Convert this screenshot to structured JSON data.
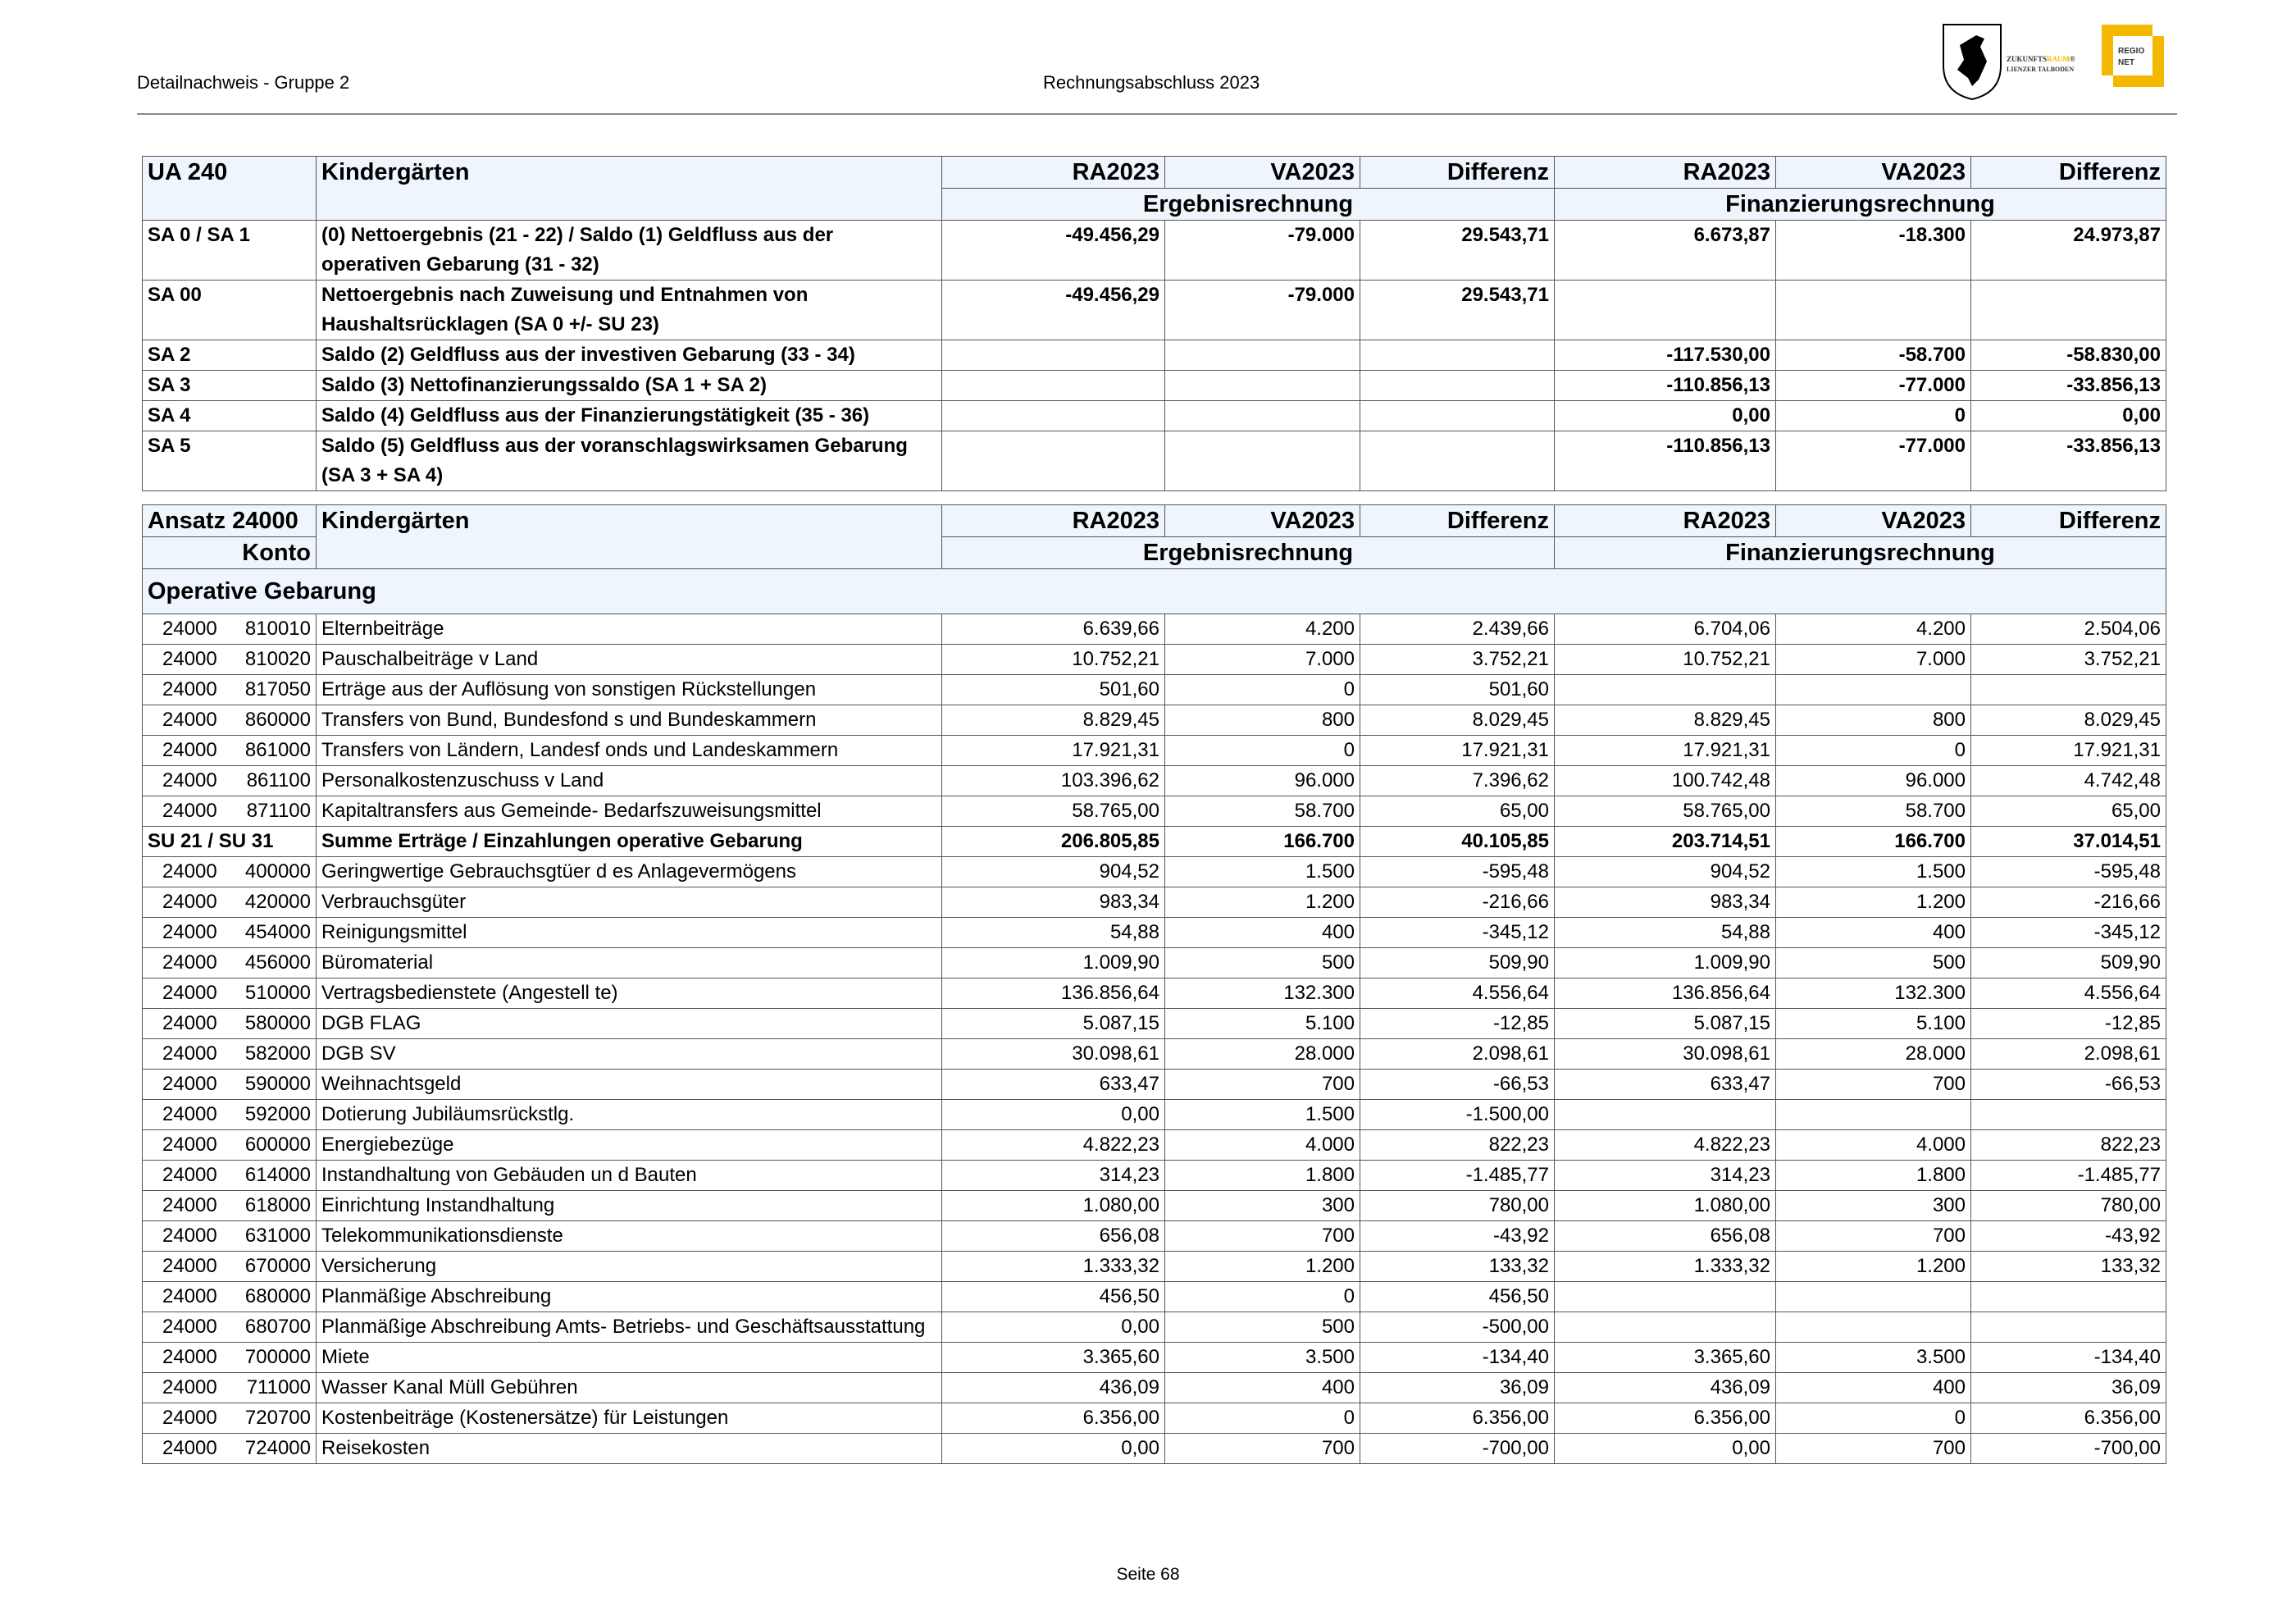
{
  "header": {
    "left": "Detailnachweis - Gruppe 2",
    "center": "Rechnungsabschluss 2023"
  },
  "logo": {
    "text1": "ZUKUNFTS",
    "text1b": "RAUM",
    "text2": "LIENZER TALBODEN",
    "regio1": "REGIO",
    "regio2": "NET",
    "accent": "#f5b800"
  },
  "footer": {
    "page": "Seite 68"
  },
  "table1": {
    "code": "UA 240",
    "title": "Kindergärten",
    "columns": [
      "RA2023",
      "VA2023",
      "Differenz",
      "RA2023",
      "VA2023",
      "Differenz"
    ],
    "groups": [
      "Ergebnisrechnung",
      "Finanzierungsrechnung"
    ],
    "rows": [
      {
        "code": "SA 0 / SA 1",
        "label": "(0) Nettoergebnis (21 - 22) / Saldo (1) Geldfluss aus der operativen Gebarung (31 - 32)",
        "values": [
          "-49.456,29",
          "-79.000",
          "29.543,71",
          "6.673,87",
          "-18.300",
          "24.973,87"
        ]
      },
      {
        "code": "SA 00",
        "label": "Nettoergebnis nach Zuweisung und Entnahmen von Haushaltsrücklagen (SA 0 +/- SU 23)",
        "values": [
          "-49.456,29",
          "-79.000",
          "29.543,71",
          "",
          "",
          ""
        ]
      },
      {
        "code": "SA 2",
        "label": "Saldo (2) Geldfluss aus der investiven Gebarung (33 - 34)",
        "values": [
          "",
          "",
          "",
          "-117.530,00",
          "-58.700",
          "-58.830,00"
        ]
      },
      {
        "code": "SA 3",
        "label": "Saldo (3) Nettofinanzierungssaldo (SA 1 + SA 2)",
        "values": [
          "",
          "",
          "",
          "-110.856,13",
          "-77.000",
          "-33.856,13"
        ]
      },
      {
        "code": "SA 4",
        "label": "Saldo (4) Geldfluss aus der Finanzierungstätigkeit (35 - 36)",
        "values": [
          "",
          "",
          "",
          "0,00",
          "0",
          "0,00"
        ]
      },
      {
        "code": "SA 5",
        "label": "Saldo (5) Geldfluss aus der voranschlagswirksamen Gebarung (SA 3 + SA 4)",
        "values": [
          "",
          "",
          "",
          "-110.856,13",
          "-77.000",
          "-33.856,13"
        ]
      }
    ]
  },
  "table2": {
    "code": "Ansatz 24000",
    "code2": "Konto",
    "title": "Kindergärten",
    "columns": [
      "RA2023",
      "VA2023",
      "Differenz",
      "RA2023",
      "VA2023",
      "Differenz"
    ],
    "groups": [
      "Ergebnisrechnung",
      "Finanzierungsrechnung"
    ],
    "section": "Operative Gebarung",
    "rows": [
      {
        "ansatz": "24000",
        "konto": "810010",
        "label": "Elternbeiträge",
        "values": [
          "6.639,66",
          "4.200",
          "2.439,66",
          "6.704,06",
          "4.200",
          "2.504,06"
        ]
      },
      {
        "ansatz": "24000",
        "konto": "810020",
        "label": "Pauschalbeiträge v Land",
        "values": [
          "10.752,21",
          "7.000",
          "3.752,21",
          "10.752,21",
          "7.000",
          "3.752,21"
        ]
      },
      {
        "ansatz": "24000",
        "konto": "817050",
        "label": "Erträge aus der Auflösung von sonstigen Rückstellungen",
        "values": [
          "501,60",
          "0",
          "501,60",
          "",
          "",
          ""
        ]
      },
      {
        "ansatz": "24000",
        "konto": "860000",
        "label": "Transfers von Bund, Bundesfond s und Bundeskammern",
        "values": [
          "8.829,45",
          "800",
          "8.029,45",
          "8.829,45",
          "800",
          "8.029,45"
        ]
      },
      {
        "ansatz": "24000",
        "konto": "861000",
        "label": "Transfers von Ländern, Landesf onds und Landeskammern",
        "values": [
          "17.921,31",
          "0",
          "17.921,31",
          "17.921,31",
          "0",
          "17.921,31"
        ]
      },
      {
        "ansatz": "24000",
        "konto": "861100",
        "label": "Personalkostenzuschuss v Land",
        "values": [
          "103.396,62",
          "96.000",
          "7.396,62",
          "100.742,48",
          "96.000",
          "4.742,48"
        ]
      },
      {
        "ansatz": "24000",
        "konto": "871100",
        "label": "Kapitaltransfers aus Gemeinde- Bedarfszuweisungsmittel",
        "values": [
          "58.765,00",
          "58.700",
          "65,00",
          "58.765,00",
          "58.700",
          "65,00"
        ]
      },
      {
        "sum": true,
        "code": "SU 21 / SU 31",
        "label": "Summe Erträge / Einzahlungen operative Gebarung",
        "values": [
          "206.805,85",
          "166.700",
          "40.105,85",
          "203.714,51",
          "166.700",
          "37.014,51"
        ]
      },
      {
        "ansatz": "24000",
        "konto": "400000",
        "label": "Geringwertige Gebrauchsgtüer d es Anlagevermögens",
        "values": [
          "904,52",
          "1.500",
          "-595,48",
          "904,52",
          "1.500",
          "-595,48"
        ]
      },
      {
        "ansatz": "24000",
        "konto": "420000",
        "label": "Verbrauchsgüter",
        "values": [
          "983,34",
          "1.200",
          "-216,66",
          "983,34",
          "1.200",
          "-216,66"
        ]
      },
      {
        "ansatz": "24000",
        "konto": "454000",
        "label": "Reinigungsmittel",
        "values": [
          "54,88",
          "400",
          "-345,12",
          "54,88",
          "400",
          "-345,12"
        ]
      },
      {
        "ansatz": "24000",
        "konto": "456000",
        "label": "Büromaterial",
        "values": [
          "1.009,90",
          "500",
          "509,90",
          "1.009,90",
          "500",
          "509,90"
        ]
      },
      {
        "ansatz": "24000",
        "konto": "510000",
        "label": "Vertragsbedienstete (Angestell te)",
        "values": [
          "136.856,64",
          "132.300",
          "4.556,64",
          "136.856,64",
          "132.300",
          "4.556,64"
        ]
      },
      {
        "ansatz": "24000",
        "konto": "580000",
        "label": "DGB FLAG",
        "values": [
          "5.087,15",
          "5.100",
          "-12,85",
          "5.087,15",
          "5.100",
          "-12,85"
        ]
      },
      {
        "ansatz": "24000",
        "konto": "582000",
        "label": "DGB SV",
        "values": [
          "30.098,61",
          "28.000",
          "2.098,61",
          "30.098,61",
          "28.000",
          "2.098,61"
        ]
      },
      {
        "ansatz": "24000",
        "konto": "590000",
        "label": "Weihnachtsgeld",
        "values": [
          "633,47",
          "700",
          "-66,53",
          "633,47",
          "700",
          "-66,53"
        ]
      },
      {
        "ansatz": "24000",
        "konto": "592000",
        "label": "Dotierung Jubiläumsrückstlg.",
        "values": [
          "0,00",
          "1.500",
          "-1.500,00",
          "",
          "",
          ""
        ]
      },
      {
        "ansatz": "24000",
        "konto": "600000",
        "label": "Energiebezüge",
        "values": [
          "4.822,23",
          "4.000",
          "822,23",
          "4.822,23",
          "4.000",
          "822,23"
        ]
      },
      {
        "ansatz": "24000",
        "konto": "614000",
        "label": "Instandhaltung von Gebäuden un d Bauten",
        "values": [
          "314,23",
          "1.800",
          "-1.485,77",
          "314,23",
          "1.800",
          "-1.485,77"
        ]
      },
      {
        "ansatz": "24000",
        "konto": "618000",
        "label": "Einrichtung Instandhaltung",
        "values": [
          "1.080,00",
          "300",
          "780,00",
          "1.080,00",
          "300",
          "780,00"
        ]
      },
      {
        "ansatz": "24000",
        "konto": "631000",
        "label": "Telekommunikationsdienste",
        "values": [
          "656,08",
          "700",
          "-43,92",
          "656,08",
          "700",
          "-43,92"
        ]
      },
      {
        "ansatz": "24000",
        "konto": "670000",
        "label": "Versicherung",
        "values": [
          "1.333,32",
          "1.200",
          "133,32",
          "1.333,32",
          "1.200",
          "133,32"
        ]
      },
      {
        "ansatz": "24000",
        "konto": "680000",
        "label": "Planmäßige Abschreibung",
        "values": [
          "456,50",
          "0",
          "456,50",
          "",
          "",
          ""
        ]
      },
      {
        "ansatz": "24000",
        "konto": "680700",
        "label": "Planmäßige Abschreibung Amts- Betriebs- und Geschäftsausstattung",
        "values": [
          "0,00",
          "500",
          "-500,00",
          "",
          "",
          ""
        ]
      },
      {
        "ansatz": "24000",
        "konto": "700000",
        "label": "Miete",
        "values": [
          "3.365,60",
          "3.500",
          "-134,40",
          "3.365,60",
          "3.500",
          "-134,40"
        ]
      },
      {
        "ansatz": "24000",
        "konto": "711000",
        "label": "Wasser Kanal Müll Gebühren",
        "values": [
          "436,09",
          "400",
          "36,09",
          "436,09",
          "400",
          "36,09"
        ]
      },
      {
        "ansatz": "24000",
        "konto": "720700",
        "label": "Kostenbeiträge (Kostenersätze) für Leistungen",
        "values": [
          "6.356,00",
          "0",
          "6.356,00",
          "6.356,00",
          "0",
          "6.356,00"
        ]
      },
      {
        "ansatz": "24000",
        "konto": "724000",
        "label": "Reisekosten",
        "values": [
          "0,00",
          "700",
          "-700,00",
          "0,00",
          "700",
          "-700,00"
        ]
      }
    ]
  }
}
